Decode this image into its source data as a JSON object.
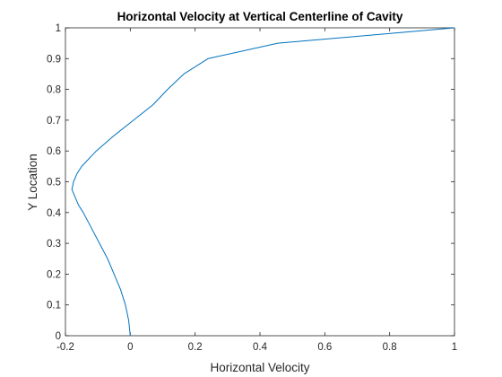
{
  "chart_data": {
    "type": "line",
    "title": "Horizontal Velocity at Vertical Centerline of Cavity",
    "xlabel": "Horizontal Velocity",
    "ylabel": "Y Location",
    "xlim": [
      -0.2,
      1
    ],
    "ylim": [
      0,
      1
    ],
    "xticks": [
      -0.2,
      0,
      0.2,
      0.4,
      0.6,
      0.8,
      1
    ],
    "xtick_labels": [
      "-0.2",
      "0",
      "0.2",
      "0.4",
      "0.6",
      "0.8",
      "1"
    ],
    "yticks": [
      0,
      0.1,
      0.2,
      0.3,
      0.4,
      0.5,
      0.6,
      0.7,
      0.8,
      0.9,
      1
    ],
    "ytick_labels": [
      "0",
      "0.1",
      "0.2",
      "0.3",
      "0.4",
      "0.5",
      "0.6",
      "0.7",
      "0.8",
      "0.9",
      "1"
    ],
    "grid": false,
    "box": true,
    "series": [
      {
        "color": "#0072BD",
        "x": [
          0,
          -0.005,
          -0.015,
          -0.03,
          -0.05,
          -0.07,
          -0.095,
          -0.12,
          -0.145,
          -0.16,
          -0.17,
          -0.18,
          -0.175,
          -0.165,
          -0.15,
          -0.105,
          -0.05,
          0.01,
          0.07,
          0.115,
          0.165,
          0.24,
          0.455,
          1
        ],
        "y": [
          0,
          0.05,
          0.1,
          0.15,
          0.2,
          0.25,
          0.3,
          0.35,
          0.4,
          0.425,
          0.45,
          0.475,
          0.5,
          0.525,
          0.55,
          0.6,
          0.65,
          0.7,
          0.75,
          0.8,
          0.85,
          0.9,
          0.95,
          1
        ]
      }
    ]
  }
}
